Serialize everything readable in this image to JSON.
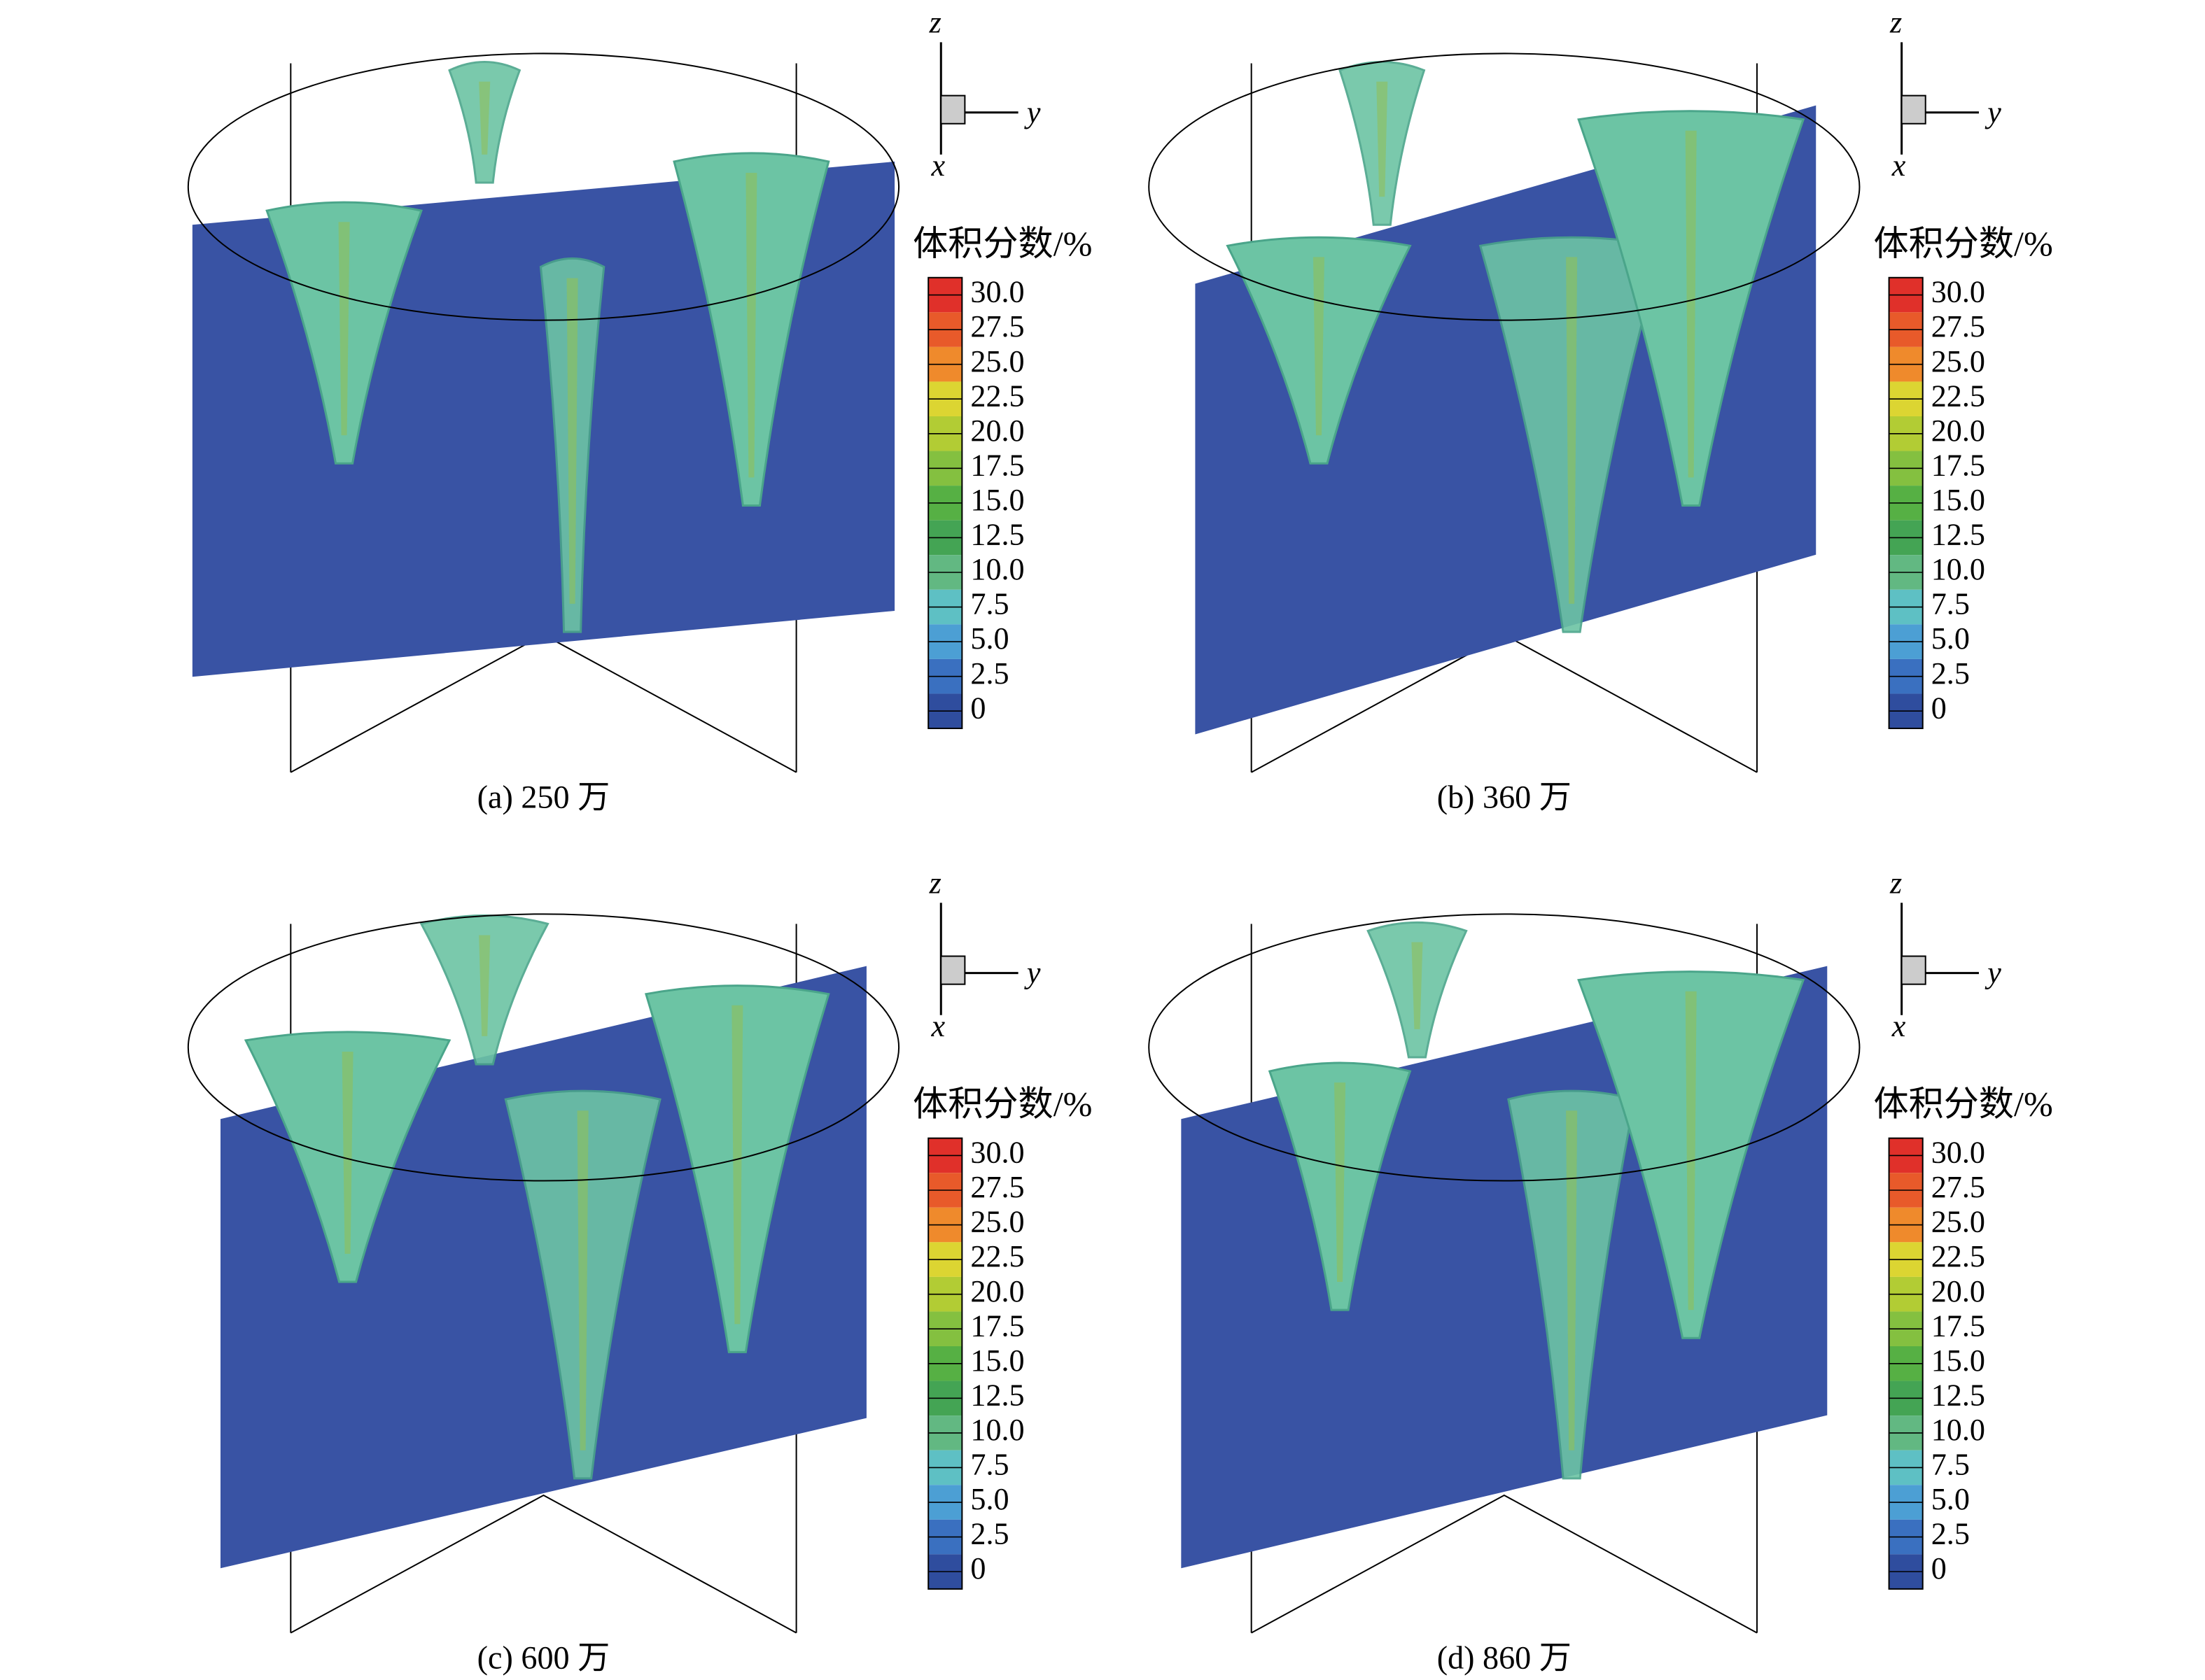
{
  "panels": [
    {
      "caption": "(a) 250 万",
      "legend": {
        "title": "体积分数/%",
        "labels": [
          "30.0",
          "27.5",
          "25.0",
          "22.5",
          "20.0",
          "17.5",
          "15.0",
          "12.5",
          "10.0",
          "7.5",
          "5.0",
          "2.5",
          "0"
        ]
      },
      "axes": {
        "z": "z",
        "y": "y",
        "x": "x"
      }
    },
    {
      "caption": "(b) 360 万",
      "legend": {
        "title": "体积分数/%",
        "labels": [
          "30.0",
          "27.5",
          "25.0",
          "22.5",
          "20.0",
          "17.5",
          "15.0",
          "12.5",
          "10.0",
          "7.5",
          "5.0",
          "2.5",
          "0"
        ]
      },
      "axes": {
        "z": "z",
        "y": "y",
        "x": "x"
      }
    },
    {
      "caption": "(c) 600 万",
      "legend": {
        "title": "体积分数/%",
        "labels": [
          "30.0",
          "27.5",
          "25.0",
          "22.5",
          "20.0",
          "17.5",
          "15.0",
          "12.5",
          "10.0",
          "7.5",
          "5.0",
          "2.5",
          "0"
        ]
      },
      "axes": {
        "z": "z",
        "y": "y",
        "x": "x"
      }
    },
    {
      "caption": "(d) 860 万",
      "legend": {
        "title": "体积分数/%",
        "labels": [
          "30.0",
          "27.5",
          "25.0",
          "22.5",
          "20.0",
          "17.5",
          "15.0",
          "12.5",
          "10.0",
          "7.5",
          "5.0",
          "2.5",
          "0"
        ]
      },
      "axes": {
        "z": "z",
        "y": "y",
        "x": "x"
      }
    }
  ],
  "colors": [
    "#e0302a",
    "#e85a2a",
    "#ef8a2c",
    "#dcd532",
    "#b2cc34",
    "#84c040",
    "#56b044",
    "#44a454",
    "#62b882",
    "#5ec0c4",
    "#4c9fd4",
    "#3a70c0",
    "#2f4d9e"
  ]
}
